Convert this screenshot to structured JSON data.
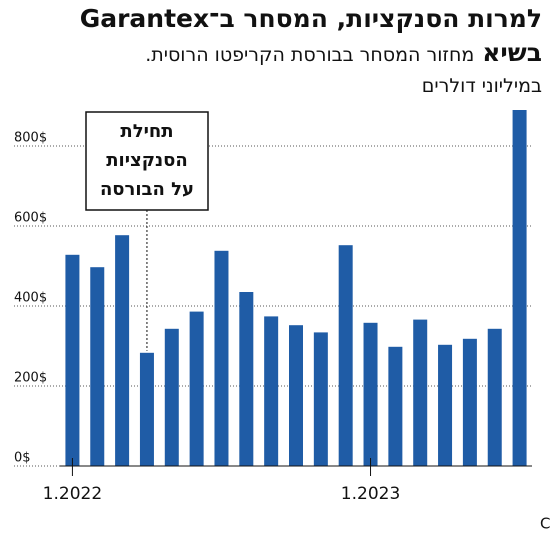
{
  "chart_data": {
    "type": "bar",
    "title": "למרות הסנקציות, המסחר ב־Garantex בשיא",
    "subtitle": "מחזור המסחר בבורסת הקריפטו הרוסית.",
    "unit": "במיליוני דולרים",
    "categories": [
      "1.2022",
      null,
      null,
      null,
      null,
      null,
      null,
      null,
      null,
      null,
      null,
      null,
      "1.2023",
      null,
      null,
      null,
      null,
      null,
      null
    ],
    "values": [
      528,
      497,
      577,
      283,
      343,
      386,
      538,
      435,
      374,
      352,
      334,
      552,
      358,
      298,
      366,
      303,
      318,
      343,
      890
    ],
    "color": "#1f5ca6",
    "ylim": [
      0,
      900
    ],
    "yticks": [
      {
        "value": 0,
        "label": "0$"
      },
      {
        "value": 200,
        "label": "200$"
      },
      {
        "value": 400,
        "label": "400$"
      },
      {
        "value": 600,
        "label": "600$"
      },
      {
        "value": 800,
        "label": "800$"
      }
    ],
    "grid": true,
    "annotation": [
      "תחילת",
      "הסנקציות",
      "על הבורסה"
    ],
    "source": "מקור: Coinpaprika"
  }
}
